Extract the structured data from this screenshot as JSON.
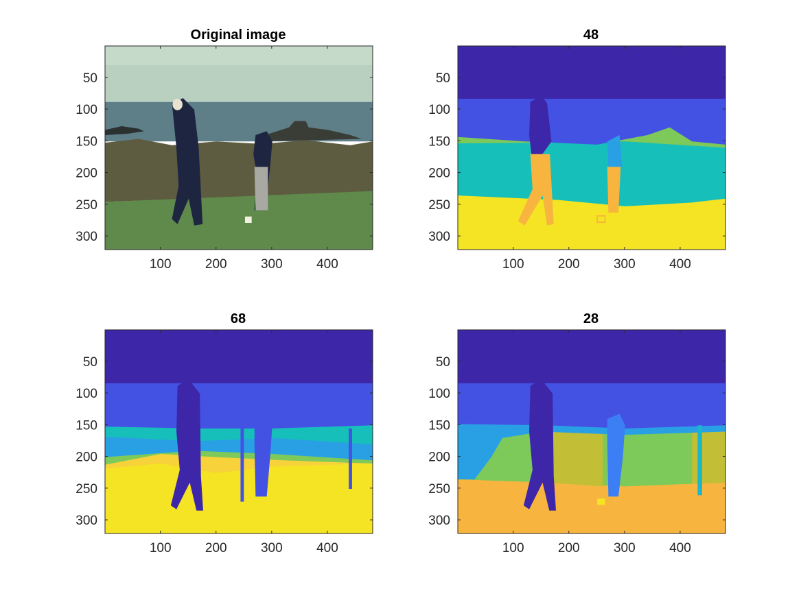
{
  "figure": {
    "panels": [
      {
        "id": "original",
        "title": "Original image"
      },
      {
        "id": "seg48",
        "title": "48"
      },
      {
        "id": "seg68",
        "title": "68"
      },
      {
        "id": "seg28",
        "title": "28"
      }
    ]
  },
  "colors": {
    "sky": "#3e26a8",
    "blue": "#4352e3",
    "mid_blue": "#3c7ff5",
    "light_blue": "#2aa0e4",
    "teal": "#17bfba",
    "cyan": "#1bb6c9",
    "green": "#7dc95a",
    "olive": "#c2be35",
    "orange": "#f7b53f",
    "yellow": "#f5e423",
    "photo_sky": "#b9d0c0",
    "photo_sea": "#5e7f88",
    "photo_shrub": "#5e5c40",
    "photo_grass": "#5f8a4c",
    "photo_dark": "#1d2540"
  },
  "chart_data": [
    {
      "type": "heatmap",
      "title": "Original image",
      "xlim": [
        0.5,
        481.5
      ],
      "ylim": [
        321.5,
        0.5
      ],
      "xticks": [
        100,
        200,
        300,
        400
      ],
      "yticks": [
        50,
        100,
        150,
        200,
        250,
        300
      ],
      "y_reversed": true,
      "content": "photo"
    },
    {
      "type": "heatmap",
      "title": "48",
      "xlim": [
        0.5,
        481.5
      ],
      "ylim": [
        321.5,
        0.5
      ],
      "xticks": [
        100,
        200,
        300,
        400
      ],
      "yticks": [
        50,
        100,
        150,
        200,
        250,
        300
      ],
      "y_reversed": true,
      "content": "segmentation"
    },
    {
      "type": "heatmap",
      "title": "68",
      "xlim": [
        0.5,
        481.5
      ],
      "ylim": [
        321.5,
        0.5
      ],
      "xticks": [
        100,
        200,
        300,
        400
      ],
      "yticks": [
        50,
        100,
        150,
        200,
        250,
        300
      ],
      "y_reversed": true,
      "content": "segmentation"
    },
    {
      "type": "heatmap",
      "title": "28",
      "xlim": [
        0.5,
        481.5
      ],
      "ylim": [
        321.5,
        0.5
      ],
      "xticks": [
        100,
        200,
        300,
        400
      ],
      "yticks": [
        50,
        100,
        150,
        200,
        250,
        300
      ],
      "y_reversed": true,
      "content": "segmentation"
    }
  ]
}
